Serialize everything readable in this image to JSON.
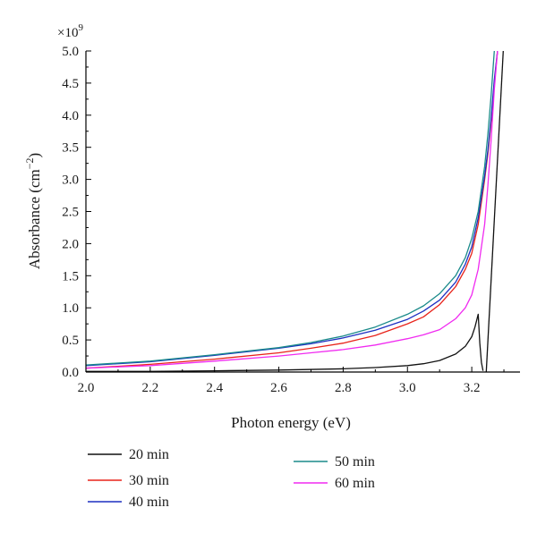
{
  "chart_data": {
    "type": "line",
    "xlabel": "Photon energy (eV)",
    "ylabel_main": "Absorbance (cm",
    "ylabel_sup": "−2",
    "ylabel_close": ")",
    "multiplier_base": "×10",
    "multiplier_exp": "9",
    "xlim": [
      2.0,
      3.35
    ],
    "ylim": [
      0.0,
      5.0
    ],
    "x_ticks": [
      2.0,
      2.2,
      2.4,
      2.6,
      2.8,
      3.0,
      3.2
    ],
    "x_tick_labels": [
      "2.0",
      "2.2",
      "2.4",
      "2.6",
      "2.8",
      "3.0",
      "3.2"
    ],
    "y_ticks": [
      0.0,
      0.5,
      1.0,
      1.5,
      2.0,
      2.5,
      3.0,
      3.5,
      4.0,
      4.5,
      5.0
    ],
    "y_tick_labels": [
      "0.0",
      "0.5",
      "1.0",
      "1.5",
      "2.0",
      "2.5",
      "3.0",
      "3.5",
      "4.0",
      "4.5",
      "5.0"
    ],
    "grid": false,
    "legend_position": "bottom",
    "series": [
      {
        "name": "20 min",
        "color": "#111111",
        "x": [
          2.0,
          2.2,
          2.4,
          2.6,
          2.8,
          2.9,
          3.0,
          3.05,
          3.1,
          3.15,
          3.18,
          3.2,
          3.21,
          3.22,
          3.225,
          3.23,
          3.235
        ],
        "y": [
          0.01,
          0.01,
          0.02,
          0.03,
          0.05,
          0.07,
          0.1,
          0.13,
          0.18,
          0.28,
          0.4,
          0.55,
          0.7,
          0.9,
          0.45,
          0.15,
          0.02
        ]
      },
      {
        "name": "30 min",
        "color": "#e8231a",
        "x": [
          2.0,
          2.2,
          2.4,
          2.6,
          2.7,
          2.8,
          2.9,
          3.0,
          3.05,
          3.1,
          3.15,
          3.18,
          3.2,
          3.22,
          3.24,
          3.25,
          3.26,
          3.27,
          3.28
        ],
        "y": [
          0.06,
          0.12,
          0.2,
          0.3,
          0.37,
          0.45,
          0.57,
          0.75,
          0.86,
          1.05,
          1.33,
          1.6,
          1.85,
          2.3,
          3.0,
          3.4,
          3.9,
          4.5,
          5.0
        ]
      },
      {
        "name": "40 min",
        "color": "#1d2fc1",
        "x": [
          2.0,
          2.2,
          2.4,
          2.6,
          2.7,
          2.8,
          2.9,
          3.0,
          3.05,
          3.1,
          3.15,
          3.18,
          3.2,
          3.22,
          3.24,
          3.25,
          3.26,
          3.27,
          3.28
        ],
        "y": [
          0.1,
          0.16,
          0.26,
          0.37,
          0.44,
          0.53,
          0.65,
          0.82,
          0.95,
          1.12,
          1.4,
          1.68,
          1.95,
          2.4,
          3.05,
          3.45,
          3.95,
          4.55,
          5.0
        ]
      },
      {
        "name": "50 min",
        "color": "#1a8a8a",
        "x": [
          2.0,
          2.2,
          2.4,
          2.6,
          2.7,
          2.8,
          2.9,
          3.0,
          3.05,
          3.1,
          3.15,
          3.18,
          3.2,
          3.22,
          3.24,
          3.25,
          3.26,
          3.27
        ],
        "y": [
          0.11,
          0.17,
          0.27,
          0.38,
          0.46,
          0.56,
          0.7,
          0.9,
          1.03,
          1.22,
          1.5,
          1.78,
          2.08,
          2.5,
          3.2,
          3.7,
          4.3,
          5.0
        ]
      },
      {
        "name": "60 min",
        "color": "#f02af0",
        "x": [
          2.0,
          2.2,
          2.4,
          2.6,
          2.7,
          2.8,
          2.9,
          3.0,
          3.05,
          3.1,
          3.15,
          3.18,
          3.2,
          3.22,
          3.24,
          3.25,
          3.26,
          3.27,
          3.28
        ],
        "y": [
          0.06,
          0.1,
          0.17,
          0.25,
          0.3,
          0.35,
          0.42,
          0.52,
          0.58,
          0.66,
          0.83,
          1.0,
          1.2,
          1.6,
          2.3,
          2.9,
          3.6,
          4.4,
          5.0
        ]
      }
    ],
    "extra_line": {
      "color": "#111111",
      "x": [
        3.245,
        3.298
      ],
      "y": [
        0.0,
        5.0
      ]
    }
  }
}
